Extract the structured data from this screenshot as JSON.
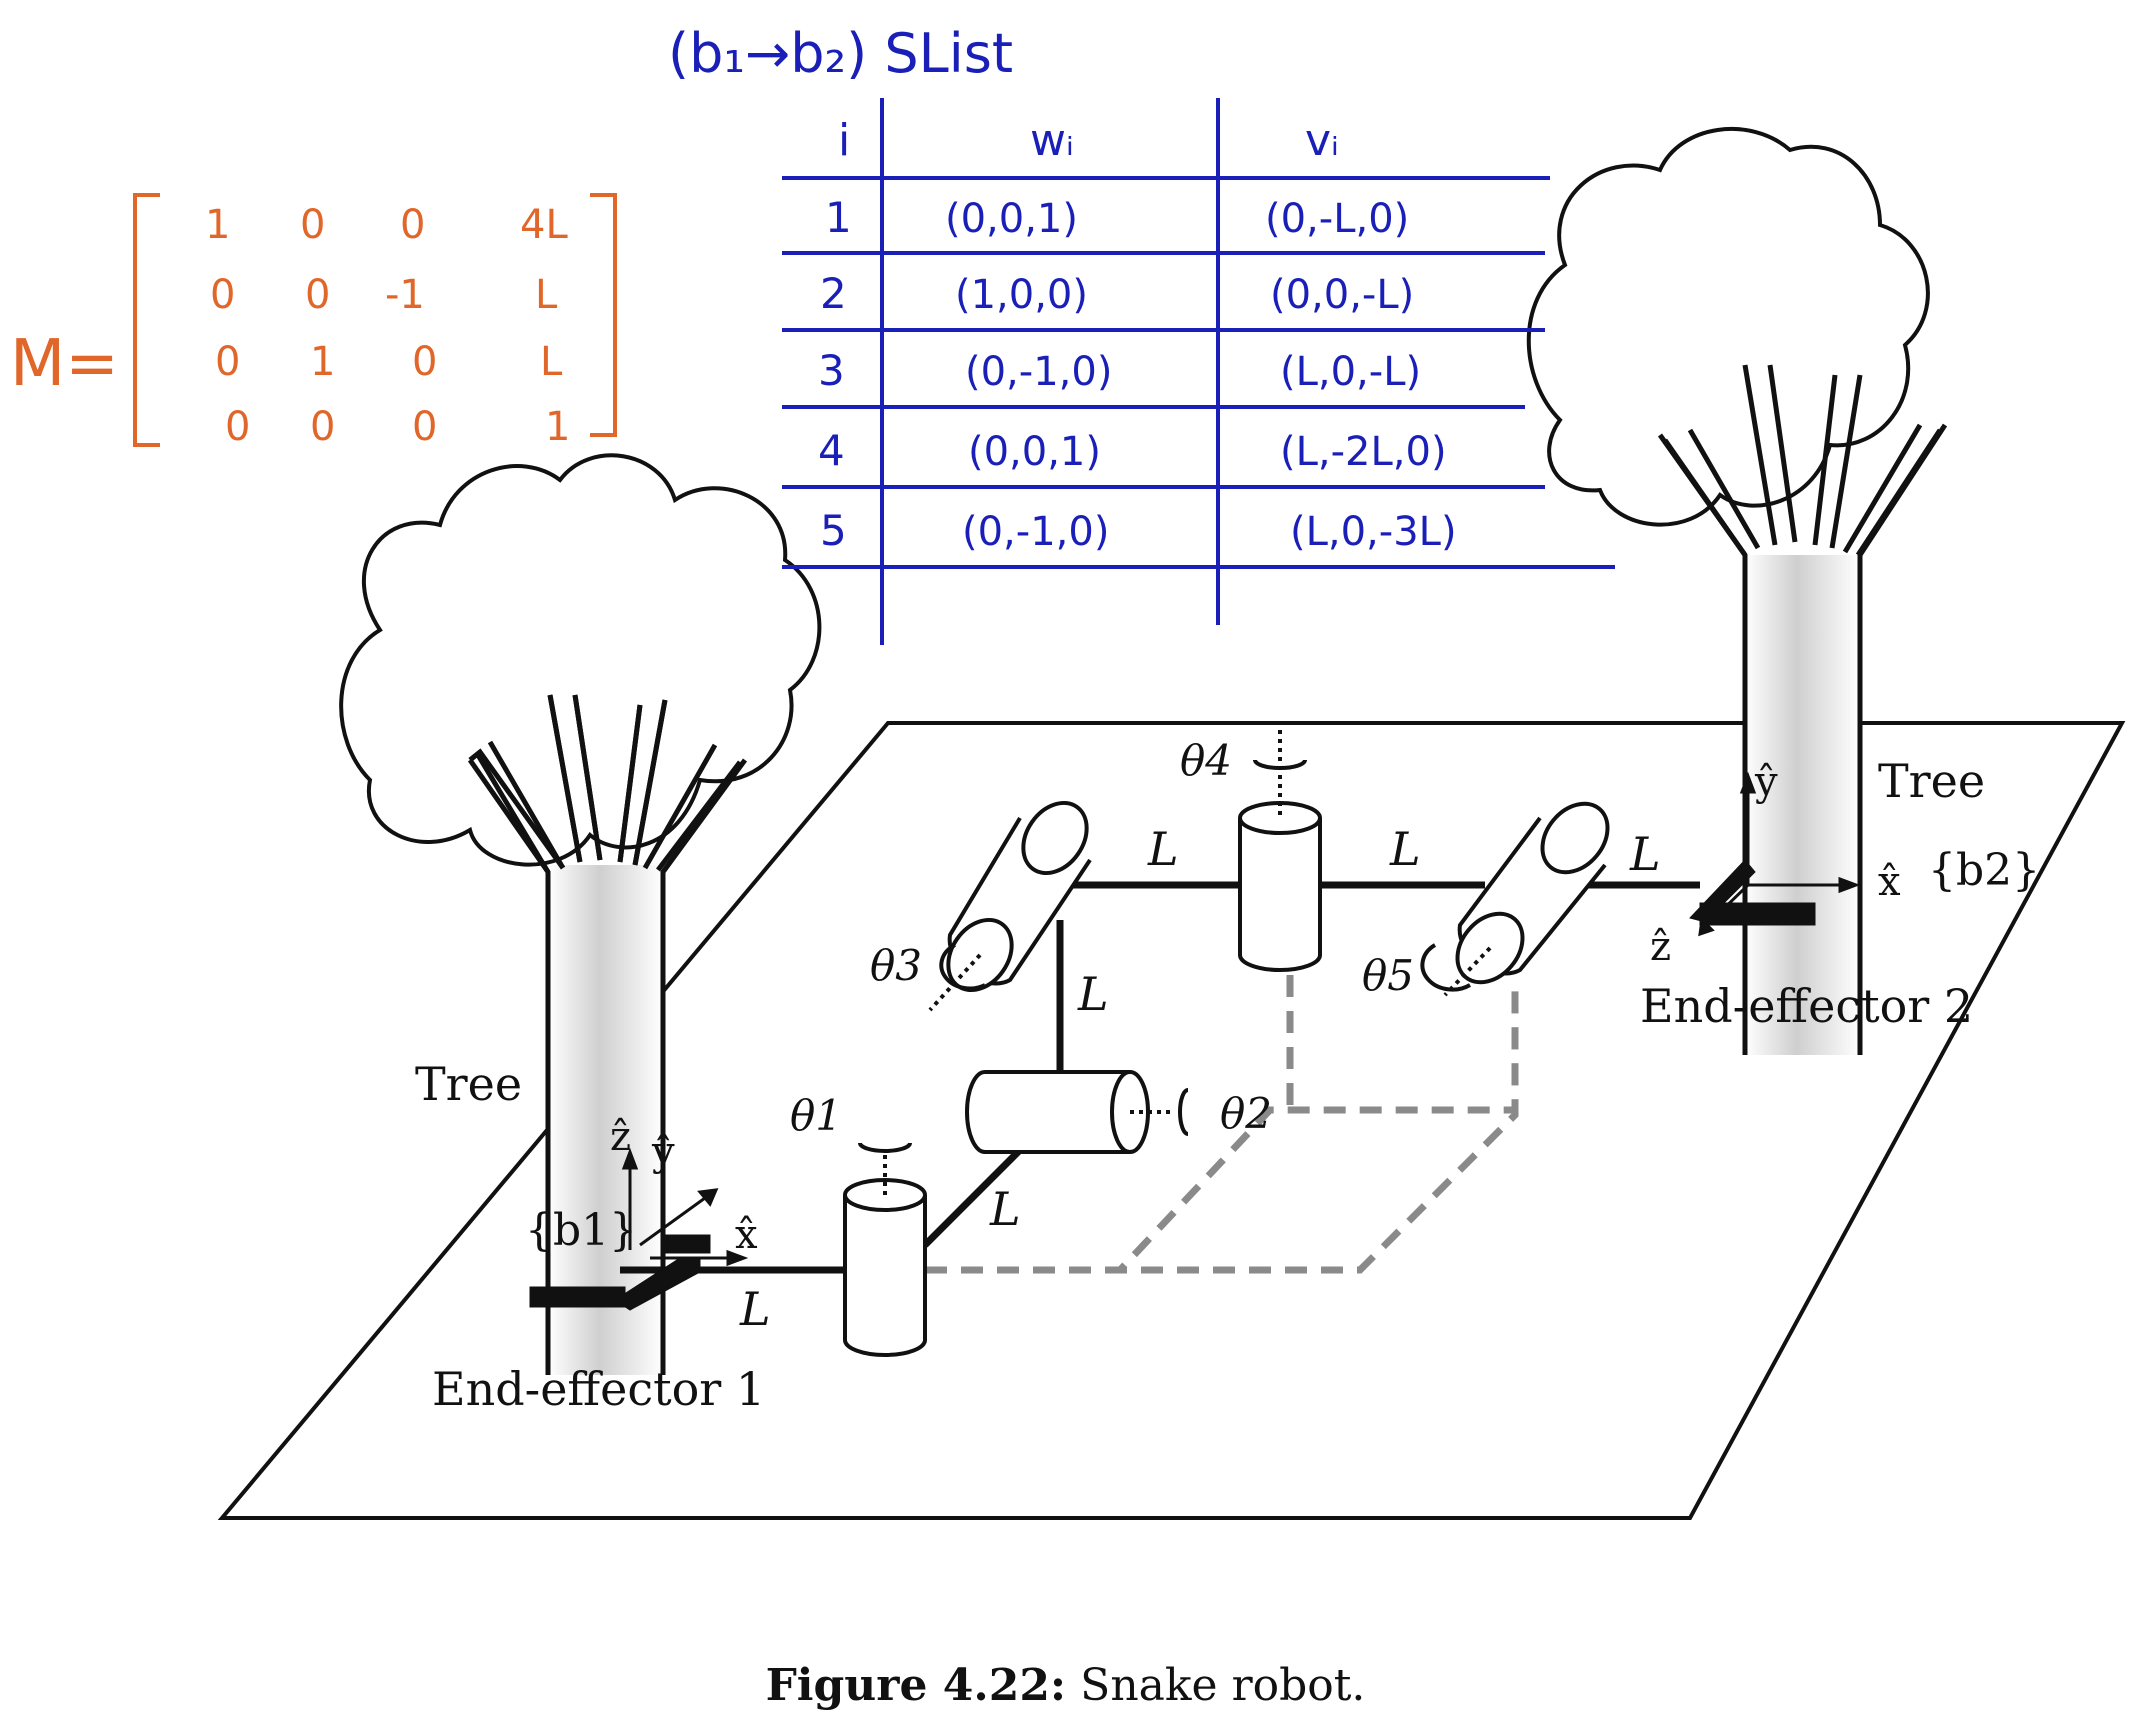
{
  "annotations": {
    "slist_title": "(b₁→b₂) SList",
    "table": {
      "headers": [
        "i",
        "wᵢ",
        "vᵢ"
      ],
      "rows": [
        {
          "i": "1",
          "w": "(0,0,1)",
          "v": "(0,-L,0)"
        },
        {
          "i": "2",
          "w": "(1,0,0)",
          "v": "(0,0,-L)"
        },
        {
          "i": "3",
          "w": "(0,-1,0)",
          "v": "(L,0,-L)"
        },
        {
          "i": "4",
          "w": "(0,0,1)",
          "v": "(L,-2L,0)"
        },
        {
          "i": "5",
          "w": "(0,-1,0)",
          "v": "(L,0,-3L)"
        }
      ]
    },
    "matrix": {
      "label": "M=",
      "rows": [
        [
          "1",
          "0",
          "0",
          "4L"
        ],
        [
          "0",
          "0",
          "-1",
          "L"
        ],
        [
          "0",
          "1",
          "0",
          "L"
        ],
        [
          "0",
          "0",
          "0",
          "1"
        ]
      ]
    }
  },
  "diagram": {
    "tree_label": "Tree",
    "link_label": "L",
    "joint_labels": [
      "θ1",
      "θ2",
      "θ3",
      "θ4",
      "θ5"
    ],
    "frame1": {
      "label": "{b1}",
      "axes": [
        "ẑ",
        "ŷ",
        "x̂"
      ]
    },
    "frame2": {
      "label": "{b2}",
      "axes": [
        "ŷ",
        "x̂",
        "ẑ"
      ]
    },
    "end_effector_1": "End-effector 1",
    "end_effector_2": "End-effector 2"
  },
  "caption": {
    "label": "Figure 4.22:",
    "text": "Snake robot."
  },
  "colors": {
    "annotation_blue": "#1a1fb8",
    "annotation_orange": "#e0662a",
    "dashed_gray": "#8a8a8a"
  }
}
